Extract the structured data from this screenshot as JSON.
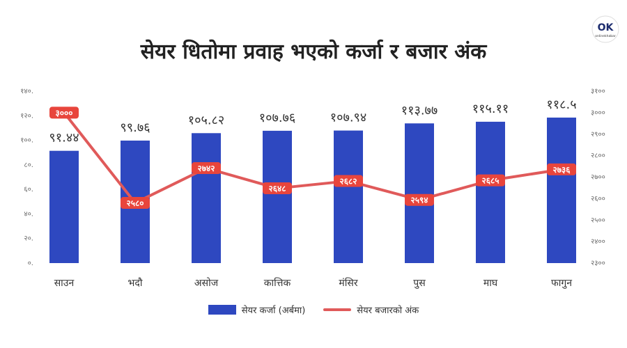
{
  "title": "सेयर धितोमा प्रवाह भएको कर्जा र बजार अंक",
  "logo_text": "OK",
  "logo_sub": "onlinekhabar",
  "colors": {
    "bar": "#2e48c0",
    "line": "#e05a5a",
    "label_box": "#e8453c",
    "tick": "#666666"
  },
  "chart_data": {
    "type": "bar",
    "categories": [
      "साउन",
      "भदौ",
      "असोज",
      "कात्तिक",
      "मंसिर",
      "पुस",
      "माघ",
      "फागुन"
    ],
    "series": [
      {
        "name": "सेयर कर्जा (अर्बमा)",
        "type": "bar",
        "axis": "left",
        "values": [
          91.44,
          99.76,
          105.82,
          107.76,
          107.94,
          113.77,
          115.11,
          118.5
        ],
        "labels": [
          "९१.४४",
          "९९.७६",
          "१०५.८२",
          "१०७.७६",
          "१०७.९४",
          "११३.७७",
          "११५.११",
          "११८.५"
        ]
      },
      {
        "name": "सेयर बजारको अंक",
        "type": "line",
        "axis": "right",
        "values": [
          3000,
          2580,
          2742,
          2648,
          2682,
          2594,
          2685,
          2736
        ],
        "labels": [
          "३०००",
          "२५८०",
          "२७४२",
          "२६४८",
          "२६८२",
          "२५९४",
          "२६८५",
          "२७३६"
        ]
      }
    ],
    "y_left": {
      "range": [
        0,
        140
      ],
      "ticks": [
        0,
        20,
        40,
        60,
        80,
        100,
        120,
        140
      ],
      "tick_labels": [
        "०.",
        "२०.",
        "४०.",
        "६०.",
        "८०.",
        "१००.",
        "१२०.",
        "१४०."
      ]
    },
    "y_right": {
      "range": [
        2300,
        3100
      ],
      "ticks": [
        2300,
        2400,
        2500,
        2600,
        2700,
        2800,
        2900,
        3000,
        3100
      ],
      "tick_labels": [
        "२३००",
        "२४००",
        "२५००",
        "२६००",
        "२७००",
        "२८००",
        "२९००",
        "३०००",
        "३१००"
      ]
    },
    "legend_position": "bottom",
    "grid": false
  }
}
